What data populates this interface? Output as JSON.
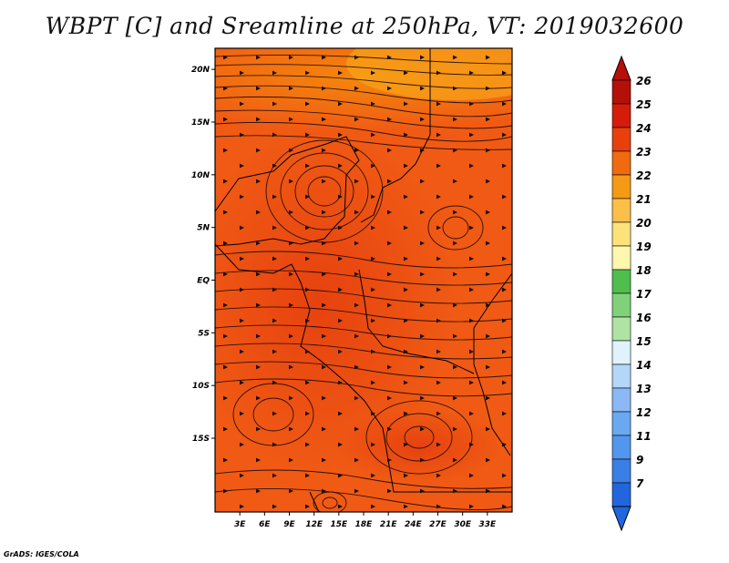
{
  "title": "WBPT [C] and Sreamline at 250hPa, VT: 2019032600",
  "credit": "GrADS: IGES/COLA",
  "map": {
    "lon_range": [
      0,
      36
    ],
    "lat_range": [
      -22,
      22
    ],
    "lon_ticks": [
      {
        "value": 3,
        "label": "3E"
      },
      {
        "value": 6,
        "label": "6E"
      },
      {
        "value": 9,
        "label": "9E"
      },
      {
        "value": 12,
        "label": "12E"
      },
      {
        "value": 15,
        "label": "15E"
      },
      {
        "value": 18,
        "label": "18E"
      },
      {
        "value": 21,
        "label": "21E"
      },
      {
        "value": 24,
        "label": "24E"
      },
      {
        "value": 27,
        "label": "27E"
      },
      {
        "value": 30,
        "label": "30E"
      },
      {
        "value": 33,
        "label": "33E"
      }
    ],
    "lat_ticks": [
      {
        "value": 20,
        "label": "20N"
      },
      {
        "value": 15,
        "label": "15N"
      },
      {
        "value": 10,
        "label": "10N"
      },
      {
        "value": 5,
        "label": "5N"
      },
      {
        "value": 0,
        "label": "EQ"
      },
      {
        "value": -5,
        "label": "5S"
      },
      {
        "value": -10,
        "label": "10S"
      },
      {
        "value": -15,
        "label": "15S"
      }
    ],
    "background_color": "#f05a14",
    "field_zones": [
      {
        "name": "north-band",
        "color": "#f58c0c"
      },
      {
        "name": "central-warm",
        "color": "#eb4c14"
      },
      {
        "name": "southern-swirl",
        "color": "#e83c10"
      }
    ]
  },
  "colorbar": {
    "levels": [
      "7",
      "9",
      "11",
      "12",
      "13",
      "14",
      "15",
      "16",
      "17",
      "18",
      "19",
      "20",
      "21",
      "22",
      "23",
      "24",
      "25",
      "26"
    ],
    "colors": [
      "#2266dd",
      "#3a7fe6",
      "#5296ee",
      "#6aa9f2",
      "#8ab9f5",
      "#b3d6f9",
      "#e0f3fc",
      "#b0e3a3",
      "#7fd27a",
      "#4fbe4d",
      "#fff7ae",
      "#fde27a",
      "#fbbf4a",
      "#f59a14",
      "#f06a10",
      "#e8400c",
      "#d51c0a",
      "#b40f08"
    ],
    "lower_arrow_color": "#2266dd",
    "upper_arrow_color": "#b40f08"
  }
}
